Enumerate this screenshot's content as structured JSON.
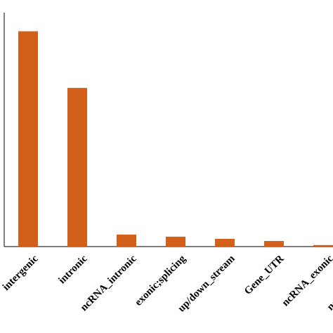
{
  "chart_data": {
    "type": "bar",
    "title": "",
    "xlabel": "",
    "ylabel": "",
    "categories": [
      "intergenic",
      "intronic",
      "ncRNA_intronic",
      "exonic;splicing",
      "up/down_stream",
      "Gene_UTR",
      "ncRNA_exonic",
      "ncRNA_splicing"
    ],
    "values": [
      100,
      73.7,
      5.6,
      4.6,
      3.6,
      2.6,
      0.7,
      0.2
    ],
    "ylim": [
      0,
      108
    ],
    "bar_color": "#d2601a",
    "grid": false,
    "legend": "none"
  }
}
